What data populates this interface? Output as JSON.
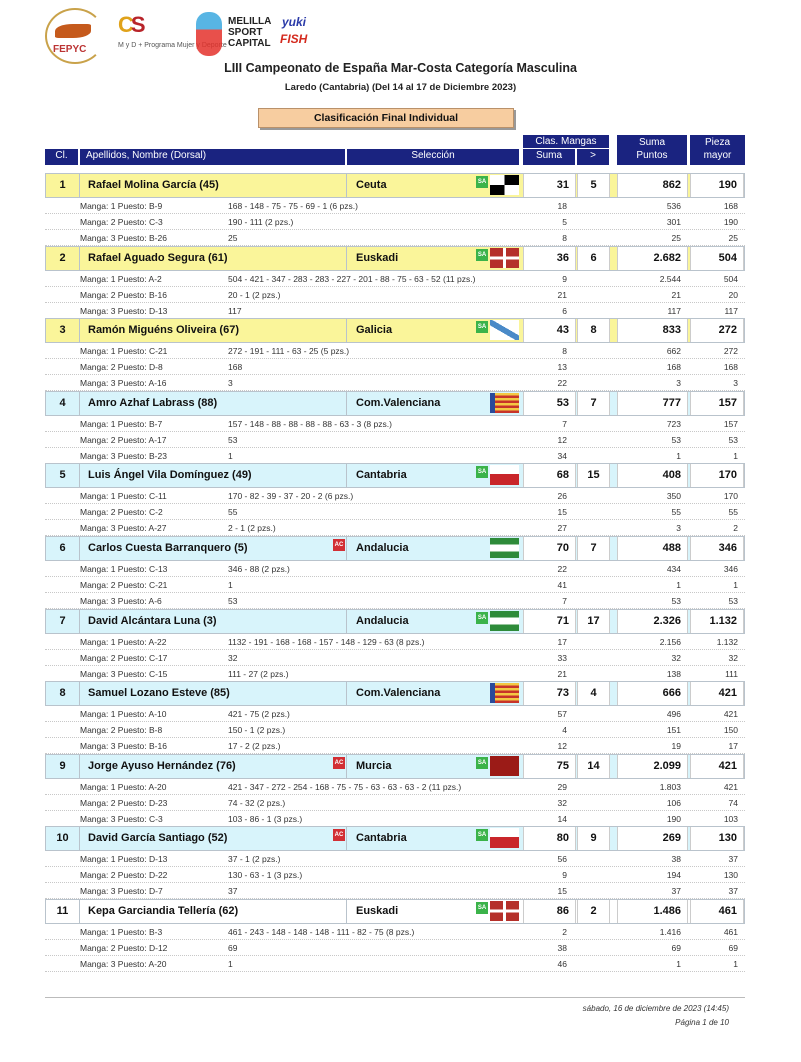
{
  "logos": {
    "fepyc": "FEPYC",
    "csd": "CSD",
    "myd": "M y D + Programa Mujer y Deporte",
    "melilla": "MELILLA SPORT CAPITAL",
    "yuki": "yuki",
    "fish": "FISH"
  },
  "header": {
    "title": "LIII Campeonato de España Mar-Costa Categoría Masculina",
    "subtitle": "Laredo (Cantabria) (Del 14  al 17 de Diciembre 2023)",
    "section": "Clasificación Final Individual"
  },
  "columns": {
    "cl": "Cl.",
    "name": "Apellidos, Nombre (Dorsal)",
    "seleccion": "Selección",
    "clas_mangas": "Clas. Mangas",
    "suma": "Suma",
    "gt": ">",
    "suma_puntos": "Suma Puntos",
    "pieza_mayor": "Pieza mayor"
  },
  "colors": {
    "header": "#1a2380",
    "podium": "#faf59a",
    "row": "#d8f4fb",
    "box_title": "#f7cda0",
    "badge_sa": "#3bb34a",
    "badge_ac": "#d22f34"
  },
  "badges": {
    "sa": "SA",
    "ac": "AC"
  },
  "rows": [
    {
      "cl": "1",
      "name": "Rafael Molina García  (45)",
      "sel": "Ceuta",
      "flag": "ceuta-flag",
      "sa": true,
      "ac": false,
      "suma": "31",
      "gt": "5",
      "puntos": "862",
      "pieza": "190",
      "style": "podium",
      "mangas": [
        {
          "label": "Manga: 1 Puesto: B-9",
          "detail": "168 - 148 - 75 - 75 - 69 - 1  (6 pzs.)",
          "clas": "18",
          "puntos": "536",
          "pieza": "168"
        },
        {
          "label": "Manga: 2 Puesto: C-3",
          "detail": "190 - 111  (2 pzs.)",
          "clas": "5",
          "puntos": "301",
          "pieza": "190"
        },
        {
          "label": "Manga: 3 Puesto: B-26",
          "detail": "25",
          "clas": "8",
          "puntos": "25",
          "pieza": "25"
        }
      ]
    },
    {
      "cl": "2",
      "name": "Rafael Aguado Segura  (61)",
      "sel": "Euskadi",
      "flag": "euskadi-flag",
      "sa": true,
      "ac": false,
      "suma": "36",
      "gt": "6",
      "puntos": "2.682",
      "pieza": "504",
      "style": "podium",
      "mangas": [
        {
          "label": "Manga: 1 Puesto: A-2",
          "detail": "504 - 421 - 347 - 283 - 283 - 227 - 201 - 88 - 75 - 63 - 52  (11 pzs.)",
          "clas": "9",
          "puntos": "2.544",
          "pieza": "504"
        },
        {
          "label": "Manga: 2 Puesto: B-16",
          "detail": "20 - 1  (2 pzs.)",
          "clas": "21",
          "puntos": "21",
          "pieza": "20"
        },
        {
          "label": "Manga: 3 Puesto: D-13",
          "detail": "117",
          "clas": "6",
          "puntos": "117",
          "pieza": "117"
        }
      ]
    },
    {
      "cl": "3",
      "name": "Ramón Miguéns Oliveira  (67)",
      "sel": "Galicia",
      "flag": "galicia-flag",
      "sa": true,
      "ac": false,
      "suma": "43",
      "gt": "8",
      "puntos": "833",
      "pieza": "272",
      "style": "podium",
      "mangas": [
        {
          "label": "Manga: 1 Puesto: C-21",
          "detail": "272 - 191 - 111 - 63 - 25  (5 pzs.)",
          "clas": "8",
          "puntos": "662",
          "pieza": "272"
        },
        {
          "label": "Manga: 2 Puesto: D-8",
          "detail": "168",
          "clas": "13",
          "puntos": "168",
          "pieza": "168"
        },
        {
          "label": "Manga: 3 Puesto: A-16",
          "detail": "3",
          "clas": "22",
          "puntos": "3",
          "pieza": "3"
        }
      ]
    },
    {
      "cl": "4",
      "name": "Amro Azhaf Labrass  (88)",
      "sel": "Com.Valenciana",
      "flag": "valencia-flag",
      "sa": false,
      "ac": false,
      "suma": "53",
      "gt": "7",
      "puntos": "777",
      "pieza": "157",
      "style": "row",
      "mangas": [
        {
          "label": "Manga: 1 Puesto: B-7",
          "detail": "157 - 148 - 88 - 88 - 88 - 88 - 63 - 3  (8 pzs.)",
          "clas": "7",
          "puntos": "723",
          "pieza": "157"
        },
        {
          "label": "Manga: 2 Puesto: A-17",
          "detail": "53",
          "clas": "12",
          "puntos": "53",
          "pieza": "53"
        },
        {
          "label": "Manga: 3 Puesto: B-23",
          "detail": "1",
          "clas": "34",
          "puntos": "1",
          "pieza": "1"
        }
      ]
    },
    {
      "cl": "5",
      "name": "Luis Ángel Vila Domínguez  (49)",
      "sel": "Cantabria",
      "flag": "cantabria-flag",
      "sa": true,
      "ac": false,
      "suma": "68",
      "gt": "15",
      "puntos": "408",
      "pieza": "170",
      "style": "row",
      "mangas": [
        {
          "label": "Manga: 1 Puesto: C-11",
          "detail": "170 - 82 - 39 - 37 - 20 - 2  (6 pzs.)",
          "clas": "26",
          "puntos": "350",
          "pieza": "170"
        },
        {
          "label": "Manga: 2 Puesto: C-2",
          "detail": "55",
          "clas": "15",
          "puntos": "55",
          "pieza": "55"
        },
        {
          "label": "Manga: 3 Puesto: A-27",
          "detail": "2 - 1  (2 pzs.)",
          "clas": "27",
          "puntos": "3",
          "pieza": "2"
        }
      ]
    },
    {
      "cl": "6",
      "name": "Carlos Cuesta Barranquero  (5)",
      "sel": "Andalucia",
      "flag": "andalucia-flag",
      "sa": false,
      "ac": true,
      "suma": "70",
      "gt": "7",
      "puntos": "488",
      "pieza": "346",
      "style": "row",
      "mangas": [
        {
          "label": "Manga: 1 Puesto: C-13",
          "detail": "346 - 88  (2 pzs.)",
          "clas": "22",
          "puntos": "434",
          "pieza": "346"
        },
        {
          "label": "Manga: 2 Puesto: C-21",
          "detail": "1",
          "clas": "41",
          "puntos": "1",
          "pieza": "1"
        },
        {
          "label": "Manga: 3 Puesto: A-6",
          "detail": "53",
          "clas": "7",
          "puntos": "53",
          "pieza": "53"
        }
      ]
    },
    {
      "cl": "7",
      "name": "David Alcántara Luna  (3)",
      "sel": "Andalucia",
      "flag": "andalucia-flag",
      "sa": true,
      "ac": false,
      "suma": "71",
      "gt": "17",
      "puntos": "2.326",
      "pieza": "1.132",
      "style": "row",
      "mangas": [
        {
          "label": "Manga: 1 Puesto: A-22",
          "detail": "1132 - 191 - 168 - 168 - 157 - 148 - 129 - 63  (8 pzs.)",
          "clas": "17",
          "puntos": "2.156",
          "pieza": "1.132"
        },
        {
          "label": "Manga: 2 Puesto: C-17",
          "detail": "32",
          "clas": "33",
          "puntos": "32",
          "pieza": "32"
        },
        {
          "label": "Manga: 3 Puesto: C-15",
          "detail": "111 - 27  (2 pzs.)",
          "clas": "21",
          "puntos": "138",
          "pieza": "111"
        }
      ]
    },
    {
      "cl": "8",
      "name": "Samuel Lozano Esteve  (85)",
      "sel": "Com.Valenciana",
      "flag": "valencia-flag",
      "sa": false,
      "ac": false,
      "suma": "73",
      "gt": "4",
      "puntos": "666",
      "pieza": "421",
      "style": "row",
      "mangas": [
        {
          "label": "Manga: 1 Puesto: A-10",
          "detail": "421 - 75  (2 pzs.)",
          "clas": "57",
          "puntos": "496",
          "pieza": "421"
        },
        {
          "label": "Manga: 2 Puesto: B-8",
          "detail": "150 - 1  (2 pzs.)",
          "clas": "4",
          "puntos": "151",
          "pieza": "150"
        },
        {
          "label": "Manga: 3 Puesto: B-16",
          "detail": "17 - 2  (2 pzs.)",
          "clas": "12",
          "puntos": "19",
          "pieza": "17"
        }
      ]
    },
    {
      "cl": "9",
      "name": "Jorge Ayuso Hernández  (76)",
      "sel": "Murcia",
      "flag": "murcia-flag",
      "sa": true,
      "ac": true,
      "suma": "75",
      "gt": "14",
      "puntos": "2.099",
      "pieza": "421",
      "style": "row",
      "mangas": [
        {
          "label": "Manga: 1 Puesto: A-20",
          "detail": "421 - 347 - 272 - 254 - 168 - 75 - 75 - 63 - 63 - 63 - 2  (11 pzs.)",
          "clas": "29",
          "puntos": "1.803",
          "pieza": "421"
        },
        {
          "label": "Manga: 2 Puesto: D-23",
          "detail": "74 - 32  (2 pzs.)",
          "clas": "32",
          "puntos": "106",
          "pieza": "74"
        },
        {
          "label": "Manga: 3 Puesto: C-3",
          "detail": "103 - 86 - 1  (3 pzs.)",
          "clas": "14",
          "puntos": "190",
          "pieza": "103"
        }
      ]
    },
    {
      "cl": "10",
      "name": "David García Santiago  (52)",
      "sel": "Cantabria",
      "flag": "cantabria-flag",
      "sa": true,
      "ac": true,
      "suma": "80",
      "gt": "9",
      "puntos": "269",
      "pieza": "130",
      "style": "row",
      "mangas": [
        {
          "label": "Manga: 1 Puesto: D-13",
          "detail": "37 - 1  (2 pzs.)",
          "clas": "56",
          "puntos": "38",
          "pieza": "37"
        },
        {
          "label": "Manga: 2 Puesto: D-22",
          "detail": "130 - 63 - 1  (3 pzs.)",
          "clas": "9",
          "puntos": "194",
          "pieza": "130"
        },
        {
          "label": "Manga: 3 Puesto: D-7",
          "detail": "37",
          "clas": "15",
          "puntos": "37",
          "pieza": "37"
        }
      ]
    },
    {
      "cl": "11",
      "name": "Kepa Garciandia Tellería  (62)",
      "sel": "Euskadi",
      "flag": "euskadi-flag",
      "sa": true,
      "ac": false,
      "suma": "86",
      "gt": "2",
      "puntos": "1.486",
      "pieza": "461",
      "style": "plain",
      "mangas": [
        {
          "label": "Manga: 1 Puesto: B-3",
          "detail": "461 - 243 - 148 - 148 - 148 - 111 - 82 - 75  (8 pzs.)",
          "clas": "2",
          "puntos": "1.416",
          "pieza": "461"
        },
        {
          "label": "Manga: 2 Puesto: D-12",
          "detail": "69",
          "clas": "38",
          "puntos": "69",
          "pieza": "69"
        },
        {
          "label": "Manga: 3 Puesto: A-20",
          "detail": "1",
          "clas": "46",
          "puntos": "1",
          "pieza": "1"
        }
      ]
    }
  ],
  "footer": {
    "date": "sábado, 16 de diciembre  de  2023  (14:45)",
    "page": "Página 1 de 10"
  }
}
